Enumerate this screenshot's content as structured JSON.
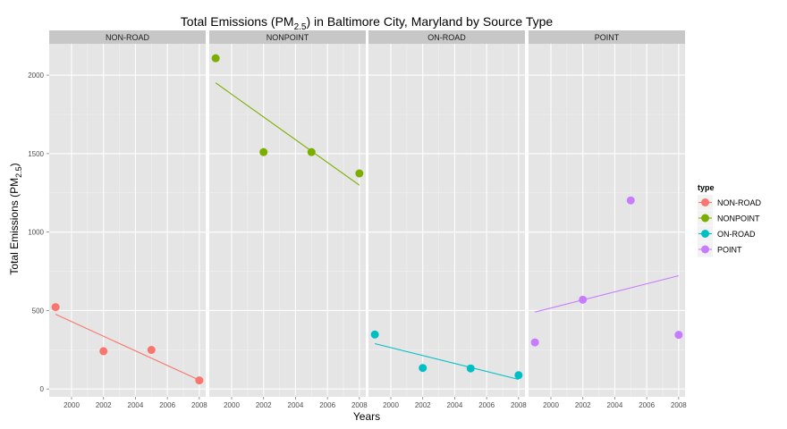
{
  "chart_data": {
    "type": "scatter",
    "title": {
      "prefix": "Total Emissions (PM",
      "sub": "2.5",
      "suffix": ") in Baltimore City, Maryland by Source Type"
    },
    "xlabel": "Years",
    "ylabel": {
      "prefix": "Total Emissions (PM",
      "sub": "2.5",
      "suffix": ")"
    },
    "xlim": [
      1998.6,
      2008.4
    ],
    "ylim": [
      -50,
      2200
    ],
    "x_ticks": [
      2000,
      2002,
      2004,
      2006,
      2008
    ],
    "y_ticks": [
      0,
      500,
      1000,
      1500,
      2000
    ],
    "grid": true,
    "legend": {
      "title": "type",
      "position": "right",
      "entries": [
        "NON-ROAD",
        "NONPOINT",
        "ON-ROAD",
        "POINT"
      ]
    },
    "facets": [
      {
        "name": "NON-ROAD",
        "color": "#F8766D",
        "points": [
          {
            "x": 1999,
            "y": 522
          },
          {
            "x": 2002,
            "y": 241
          },
          {
            "x": 2005,
            "y": 249
          },
          {
            "x": 2008,
            "y": 55
          }
        ],
        "trend": [
          {
            "x": 1999,
            "y": 476
          },
          {
            "x": 2008,
            "y": 57
          }
        ]
      },
      {
        "name": "NONPOINT",
        "color": "#7CAE00",
        "points": [
          {
            "x": 1999,
            "y": 2108
          },
          {
            "x": 2002,
            "y": 1510
          },
          {
            "x": 2005,
            "y": 1510
          },
          {
            "x": 2008,
            "y": 1374
          }
        ],
        "trend": [
          {
            "x": 1999,
            "y": 1951
          },
          {
            "x": 2008,
            "y": 1299
          }
        ]
      },
      {
        "name": "ON-ROAD",
        "color": "#00BFC4",
        "points": [
          {
            "x": 1999,
            "y": 347
          },
          {
            "x": 2002,
            "y": 134
          },
          {
            "x": 2005,
            "y": 131
          },
          {
            "x": 2008,
            "y": 88
          }
        ],
        "trend": [
          {
            "x": 1999,
            "y": 289
          },
          {
            "x": 2008,
            "y": 61
          }
        ]
      },
      {
        "name": "POINT",
        "color": "#C77CFF",
        "points": [
          {
            "x": 1999,
            "y": 297
          },
          {
            "x": 2002,
            "y": 569
          },
          {
            "x": 2005,
            "y": 1202
          },
          {
            "x": 2008,
            "y": 345
          }
        ],
        "trend": [
          {
            "x": 1999,
            "y": 490
          },
          {
            "x": 2008,
            "y": 722
          }
        ]
      }
    ]
  }
}
